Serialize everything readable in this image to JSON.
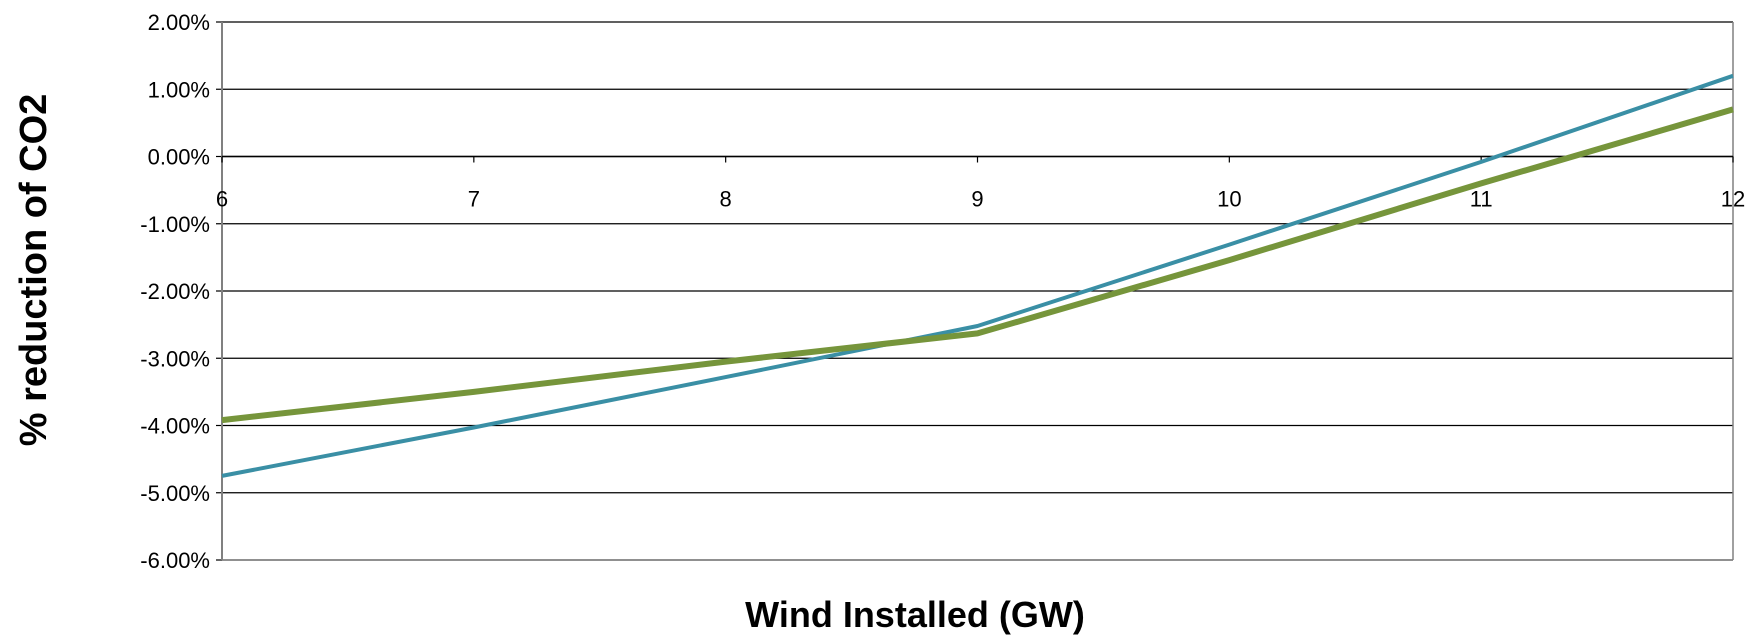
{
  "chart_data": {
    "type": "line",
    "title": "",
    "xlabel": "Wind Installed (GW)",
    "ylabel": "% reduction of CO2",
    "xlim": [
      6,
      12
    ],
    "ylim": [
      -6,
      2
    ],
    "x_ticks": [
      "6",
      "7",
      "8",
      "9",
      "10",
      "11",
      "12"
    ],
    "y_ticks": [
      "2.00%",
      "1.00%",
      "0.00%",
      "-1.00%",
      "-2.00%",
      "-3.00%",
      "-4.00%",
      "-5.00%",
      "-6.00%"
    ],
    "grid": "horizontal",
    "legend": "none",
    "series": [
      {
        "color": "#3a8fa5",
        "x": [
          6,
          7,
          8,
          9,
          10,
          11,
          12
        ],
        "values": [
          -4.75,
          -4.03,
          -3.28,
          -2.52,
          -1.31,
          -0.08,
          1.2
        ]
      },
      {
        "color": "#76953b",
        "x": [
          6,
          7,
          8,
          9,
          10,
          11,
          12
        ],
        "values": [
          -3.92,
          -3.5,
          -3.05,
          -2.63,
          -1.54,
          -0.4,
          0.7
        ]
      }
    ]
  }
}
